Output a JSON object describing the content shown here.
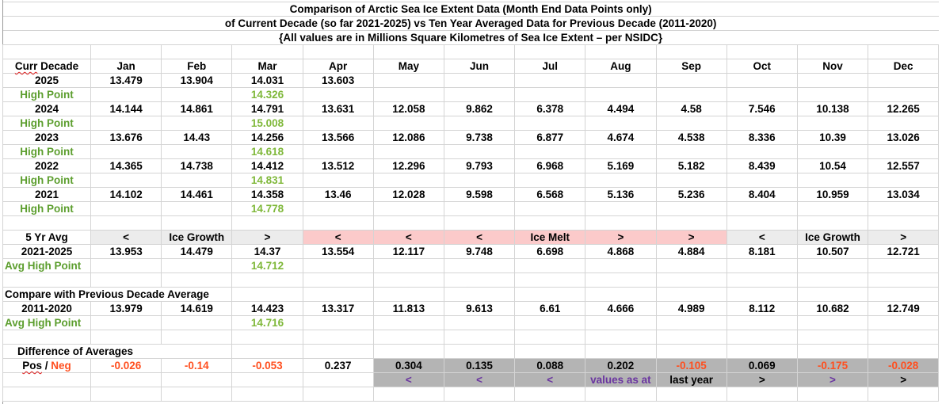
{
  "title": {
    "line1": "Comparison of Arctic Sea Ice Extent Data (Month End Data Points only)",
    "line2": "of Current Decade (so far 2021-2025) vs Ten Year Averaged Data for Previous Decade (2011-2020)",
    "line3": "{All values are in Millions Square Kilometres of Sea Ice Extent – per NSIDC}"
  },
  "header": {
    "label_a": "Curr",
    "label_b": " Decade",
    "months": [
      "Jan",
      "Feb",
      "Mar",
      "Apr",
      "May",
      "Jun",
      "Jul",
      "Aug",
      "Sep",
      "Oct",
      "Nov",
      "Dec"
    ]
  },
  "years": [
    {
      "year": "2025",
      "values": [
        "13.479",
        "13.904",
        "14.031",
        "13.603",
        "",
        "",
        "",
        "",
        "",
        "",
        "",
        ""
      ],
      "high_label": "High Point",
      "high_point": "14.326"
    },
    {
      "year": "2024",
      "values": [
        "14.144",
        "14.861",
        "14.791",
        "13.631",
        "12.058",
        "9.862",
        "6.378",
        "4.494",
        "4.58",
        "7.546",
        "10.138",
        "12.265"
      ],
      "high_label": "High Point",
      "high_point": "15.008"
    },
    {
      "year": "2023",
      "values": [
        "13.676",
        "14.43",
        "14.256",
        "13.566",
        "12.086",
        "9.738",
        "6.877",
        "4.674",
        "4.538",
        "8.336",
        "10.39",
        "13.026"
      ],
      "high_label": "High Point",
      "high_point": "14.618"
    },
    {
      "year": "2022",
      "values": [
        "14.365",
        "14.738",
        "14.412",
        "13.512",
        "12.296",
        "9.793",
        "6.968",
        "5.169",
        "5.182",
        "8.439",
        "10.54",
        "12.557"
      ],
      "high_label": "High Point",
      "high_point": "14.831"
    },
    {
      "year": "2021",
      "values": [
        "14.102",
        "14.461",
        "14.358",
        "13.46",
        "12.028",
        "9.598",
        "6.568",
        "5.136",
        "5.236",
        "8.404",
        "10.959",
        "13.034"
      ],
      "high_label": "High Point",
      "high_point": "14.778"
    }
  ],
  "five_year": {
    "label": "5 Yr Avg",
    "season_markers": [
      "<",
      "Ice Growth",
      ">",
      "<",
      "<",
      "<",
      "Ice Melt",
      ">",
      ">",
      "<",
      "Ice Growth",
      ">"
    ],
    "range": "2021-2025",
    "values": [
      "13.953",
      "14.479",
      "14.37",
      "13.554",
      "12.117",
      "9.748",
      "6.698",
      "4.868",
      "4.884",
      "8.181",
      "10.507",
      "12.721"
    ],
    "high_label": "Avg High Point",
    "high_point": "14.712"
  },
  "previous_decade": {
    "label": "Compare with Previous Decade Average",
    "range": "2011-2020",
    "values": [
      "13.979",
      "14.619",
      "14.423",
      "13.317",
      "11.813",
      "9.613",
      "6.61",
      "4.666",
      "4.989",
      "8.112",
      "10.682",
      "12.749"
    ],
    "high_label": "Avg High Point",
    "high_point": "14.716"
  },
  "difference": {
    "label": "Difference of Averages",
    "pos_label": "Pos",
    "slash": " / ",
    "neg_label": "Neg",
    "values": [
      "-0.026",
      "-0.14",
      "-0.053",
      "0.237",
      "0.304",
      "0.135",
      "0.088",
      "0.202",
      "-0.105",
      "0.069",
      "-0.175",
      "-0.028"
    ],
    "note_row": [
      "",
      "",
      "",
      "",
      "<",
      "<",
      "<",
      "values as at",
      "last year",
      ">",
      ">",
      ">"
    ]
  },
  "colors": {
    "positive": "#000000",
    "negative": "#ff4f1f",
    "high_point": "#5c9e2e",
    "note": "#6a35a0",
    "melt_band": "#fbcaca",
    "growth_band": "#ececec",
    "diff_band": "#b4b4b4"
  }
}
